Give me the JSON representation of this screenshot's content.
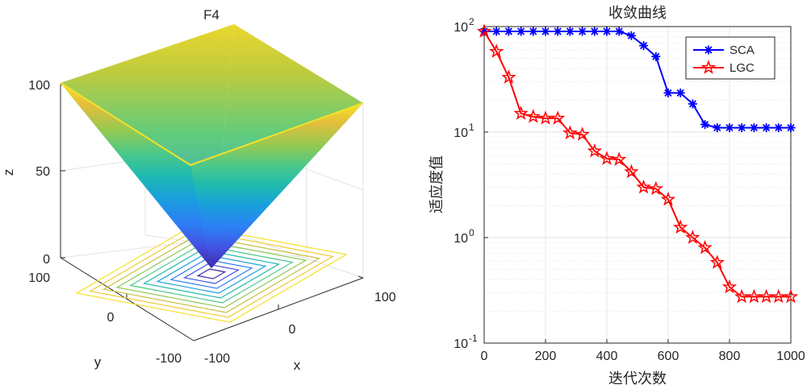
{
  "chart_data": [
    {
      "type": "surface3d",
      "title": "F4",
      "xlabel": "x",
      "ylabel": "y",
      "zlabel": "z",
      "x_ticks": [
        "-100",
        "0",
        "100"
      ],
      "y_ticks": [
        "-100",
        "0",
        "100"
      ],
      "z_ticks": [
        "0",
        "50",
        "100"
      ],
      "xlim": [
        -100,
        100
      ],
      "ylim": [
        -100,
        100
      ],
      "zlim": [
        0,
        100
      ],
      "function": "z = max(|x|, |y|)",
      "contour_levels": [
        10,
        20,
        30,
        40,
        50,
        60,
        70,
        80,
        90,
        100
      ]
    },
    {
      "type": "line",
      "title": "收敛曲线",
      "xlabel": "迭代次数",
      "ylabel": "适应度值",
      "yscale": "log",
      "xlim": [
        0,
        1000
      ],
      "ylim": [
        0.1,
        100
      ],
      "x_ticks": [
        "0",
        "200",
        "400",
        "600",
        "800",
        "1000"
      ],
      "y_ticks": [
        {
          "base": "10",
          "exp": "-1",
          "value": 0.1
        },
        {
          "base": "10",
          "exp": "0",
          "value": 1
        },
        {
          "base": "10",
          "exp": "1",
          "value": 10
        },
        {
          "base": "10",
          "exp": "2",
          "value": 100
        }
      ],
      "legend_position": "top-right",
      "grid": true,
      "x": [
        0,
        40,
        80,
        120,
        160,
        200,
        240,
        280,
        320,
        360,
        400,
        440,
        480,
        520,
        560,
        600,
        640,
        680,
        720,
        760,
        800,
        840,
        880,
        920,
        960,
        1000
      ],
      "series": [
        {
          "name": "SCA",
          "color": "#0000ff",
          "marker": "asterisk",
          "values": [
            90,
            90,
            90,
            90,
            90,
            90,
            90,
            90,
            90,
            90,
            90,
            90,
            82,
            66,
            52,
            23.5,
            23.5,
            18.5,
            11.8,
            11,
            11,
            11,
            11,
            11,
            11,
            11
          ]
        },
        {
          "name": "LGC",
          "color": "#ff0000",
          "marker": "pentagram",
          "values": [
            90,
            58,
            33,
            15,
            14,
            13.5,
            13.5,
            9.8,
            9.5,
            6.6,
            5.6,
            5.5,
            4.2,
            3,
            2.9,
            2.3,
            1.25,
            1,
            0.8,
            0.58,
            0.34,
            0.275,
            0.275,
            0.275,
            0.275,
            0.275
          ]
        }
      ]
    }
  ]
}
